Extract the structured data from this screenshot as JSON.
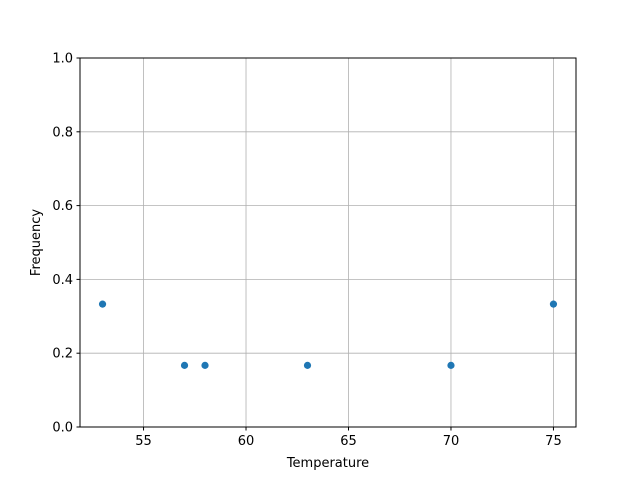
{
  "chart_data": {
    "type": "scatter",
    "title": "",
    "xlabel": "Temperature",
    "ylabel": "Frequency",
    "xlim": [
      51.9,
      76.1
    ],
    "ylim": [
      0,
      1.0
    ],
    "xticks": [
      55,
      60,
      65,
      70,
      75
    ],
    "xtick_labels": [
      "55",
      "60",
      "65",
      "70",
      "75"
    ],
    "yticks": [
      0,
      0.2,
      0.4,
      0.6,
      0.8,
      1.0
    ],
    "ytick_labels": [
      "0.0",
      "0.2",
      "0.4",
      "0.6",
      "0.8",
      "1.0"
    ],
    "grid": true,
    "color": "#1f77b4",
    "points": [
      {
        "x": 53,
        "y": 0.333
      },
      {
        "x": 57,
        "y": 0.167
      },
      {
        "x": 58,
        "y": 0.167
      },
      {
        "x": 63,
        "y": 0.167
      },
      {
        "x": 70,
        "y": 0.167
      },
      {
        "x": 75,
        "y": 0.333
      }
    ]
  }
}
